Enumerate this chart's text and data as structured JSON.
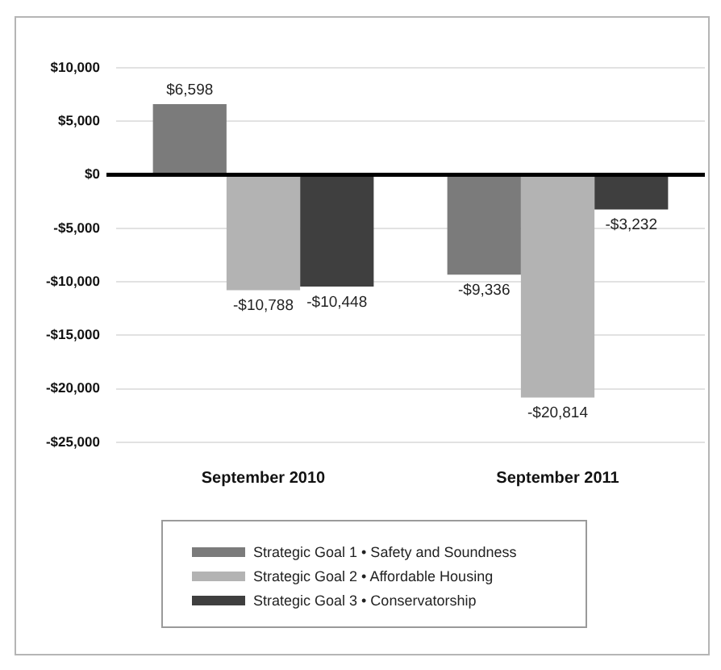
{
  "chart_data": {
    "type": "bar",
    "categories": [
      "September 2010",
      "September 2011"
    ],
    "series": [
      {
        "name": "Strategic Goal 1 • Safety and Soundness",
        "color": "#7b7b7b",
        "values": [
          6598,
          -9336
        ],
        "value_labels": [
          "$6,598",
          "-$9,336"
        ]
      },
      {
        "name": "Strategic Goal 2 • Affordable Housing",
        "color": "#b3b3b3",
        "values": [
          -10788,
          -20814
        ],
        "value_labels": [
          "-$10,788",
          "-$20,814"
        ]
      },
      {
        "name": "Strategic Goal 3 • Conservatorship",
        "color": "#3f3f3f",
        "values": [
          -10448,
          -3232
        ],
        "value_labels": [
          "-$10,448",
          "-$3,232"
        ]
      }
    ],
    "ylim": [
      -25000,
      10000
    ],
    "yticks": [
      {
        "value": 10000,
        "label": "$10,000"
      },
      {
        "value": 5000,
        "label": "$5,000"
      },
      {
        "value": 0,
        "label": "$0"
      },
      {
        "value": -5000,
        "label": "-$5,000"
      },
      {
        "value": -10000,
        "label": "-$10,000"
      },
      {
        "value": -15000,
        "label": "-$15,000"
      },
      {
        "value": -20000,
        "label": "-$20,000"
      },
      {
        "value": -25000,
        "label": "-$25,000"
      }
    ],
    "grid": "y",
    "legend": "bottom"
  }
}
